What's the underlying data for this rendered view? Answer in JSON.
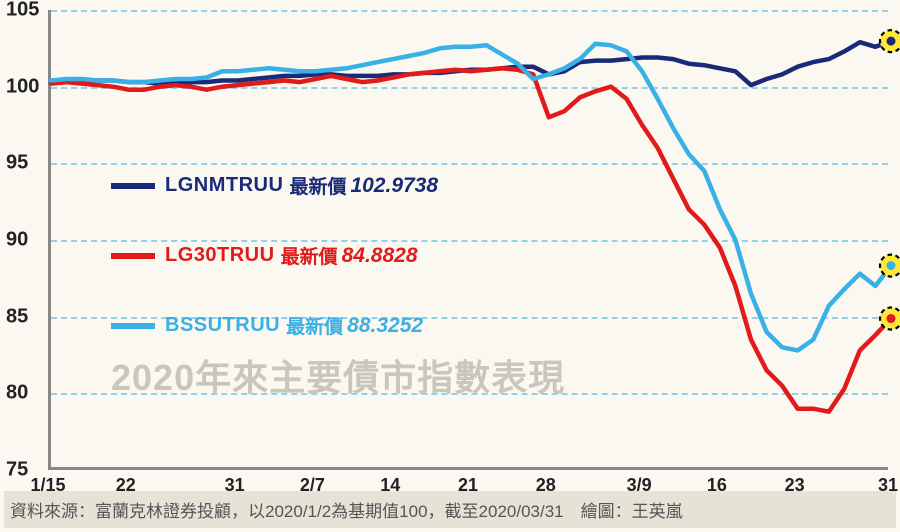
{
  "chart": {
    "type": "line",
    "title": "2020年來主要債市指數表現",
    "background_color": "#faf8f0",
    "grid_color": "#4fb8e8",
    "axis_color": "#888888",
    "text_color": "#222222",
    "ylim": [
      75,
      105
    ],
    "ytick_step": 5,
    "yticks": [
      75,
      80,
      85,
      90,
      95,
      100,
      105
    ],
    "xtick_labels": [
      "1/15",
      "22",
      "31",
      "2/7",
      "14",
      "21",
      "28",
      "3/9",
      "16",
      "23",
      "31"
    ],
    "xtick_pos": [
      0,
      5,
      12,
      17,
      22,
      27,
      32,
      38,
      43,
      48,
      54
    ],
    "x_count": 55,
    "line_width": 4.5,
    "end_marker": {
      "fill": "#ffe936",
      "stroke": "#000000",
      "r": 11
    },
    "series": [
      {
        "ticker": "LGNMTRUU",
        "label_zh": "最新價",
        "value_text": "102.9738",
        "color": "#1b2a78",
        "data": [
          100.3,
          100.3,
          100.4,
          100.4,
          100.4,
          100.3,
          100.3,
          100.2,
          100.2,
          100.3,
          100.3,
          100.4,
          100.4,
          100.5,
          100.6,
          100.7,
          100.7,
          100.8,
          100.8,
          100.7,
          100.7,
          100.7,
          100.8,
          100.8,
          100.9,
          100.9,
          101.0,
          101.1,
          101.1,
          101.2,
          101.3,
          101.3,
          100.8,
          101.0,
          101.6,
          101.7,
          101.7,
          101.8,
          101.9,
          101.9,
          101.8,
          101.5,
          101.4,
          101.2,
          101.0,
          100.1,
          100.5,
          100.8,
          101.3,
          101.6,
          101.8,
          102.3,
          102.9,
          102.6,
          102.97
        ]
      },
      {
        "ticker": "LG30TRUU",
        "label_zh": "最新價",
        "value_text": "84.8828",
        "color": "#e11a1a",
        "data": [
          100.2,
          100.3,
          100.2,
          100.1,
          100.0,
          99.8,
          99.8,
          100.0,
          100.1,
          100.0,
          99.8,
          100.0,
          100.1,
          100.2,
          100.3,
          100.4,
          100.3,
          100.5,
          100.7,
          100.5,
          100.3,
          100.4,
          100.6,
          100.8,
          100.9,
          101.0,
          101.1,
          101.0,
          101.1,
          101.2,
          101.1,
          100.8,
          98.0,
          98.4,
          99.3,
          99.7,
          100.0,
          99.2,
          97.5,
          96.0,
          94.0,
          92.0,
          91.0,
          89.5,
          87.0,
          83.5,
          81.5,
          80.5,
          79.0,
          79.0,
          78.8,
          80.3,
          82.8,
          83.8,
          84.88
        ]
      },
      {
        "ticker": "BSSUTRUU",
        "label_zh": "最新價",
        "value_text": "88.3252",
        "color": "#39b0e6",
        "data": [
          100.4,
          100.5,
          100.5,
          100.4,
          100.4,
          100.3,
          100.3,
          100.4,
          100.5,
          100.5,
          100.6,
          101.0,
          101.0,
          101.1,
          101.2,
          101.1,
          101.0,
          101.0,
          101.1,
          101.2,
          101.4,
          101.6,
          101.8,
          102.0,
          102.2,
          102.5,
          102.6,
          102.6,
          102.7,
          102.1,
          101.5,
          100.5,
          100.8,
          101.2,
          101.8,
          102.8,
          102.7,
          102.3,
          101.0,
          99.2,
          97.3,
          95.6,
          94.5,
          92.0,
          90.0,
          86.5,
          84.0,
          83.0,
          82.8,
          83.5,
          85.7,
          86.8,
          87.8,
          87.0,
          88.33
        ]
      }
    ]
  },
  "source": {
    "text": "資料來源：富蘭克林證券投顧，以2020/1/2為基期值100，截至2020/03/31　繪圖：王英嵐"
  }
}
